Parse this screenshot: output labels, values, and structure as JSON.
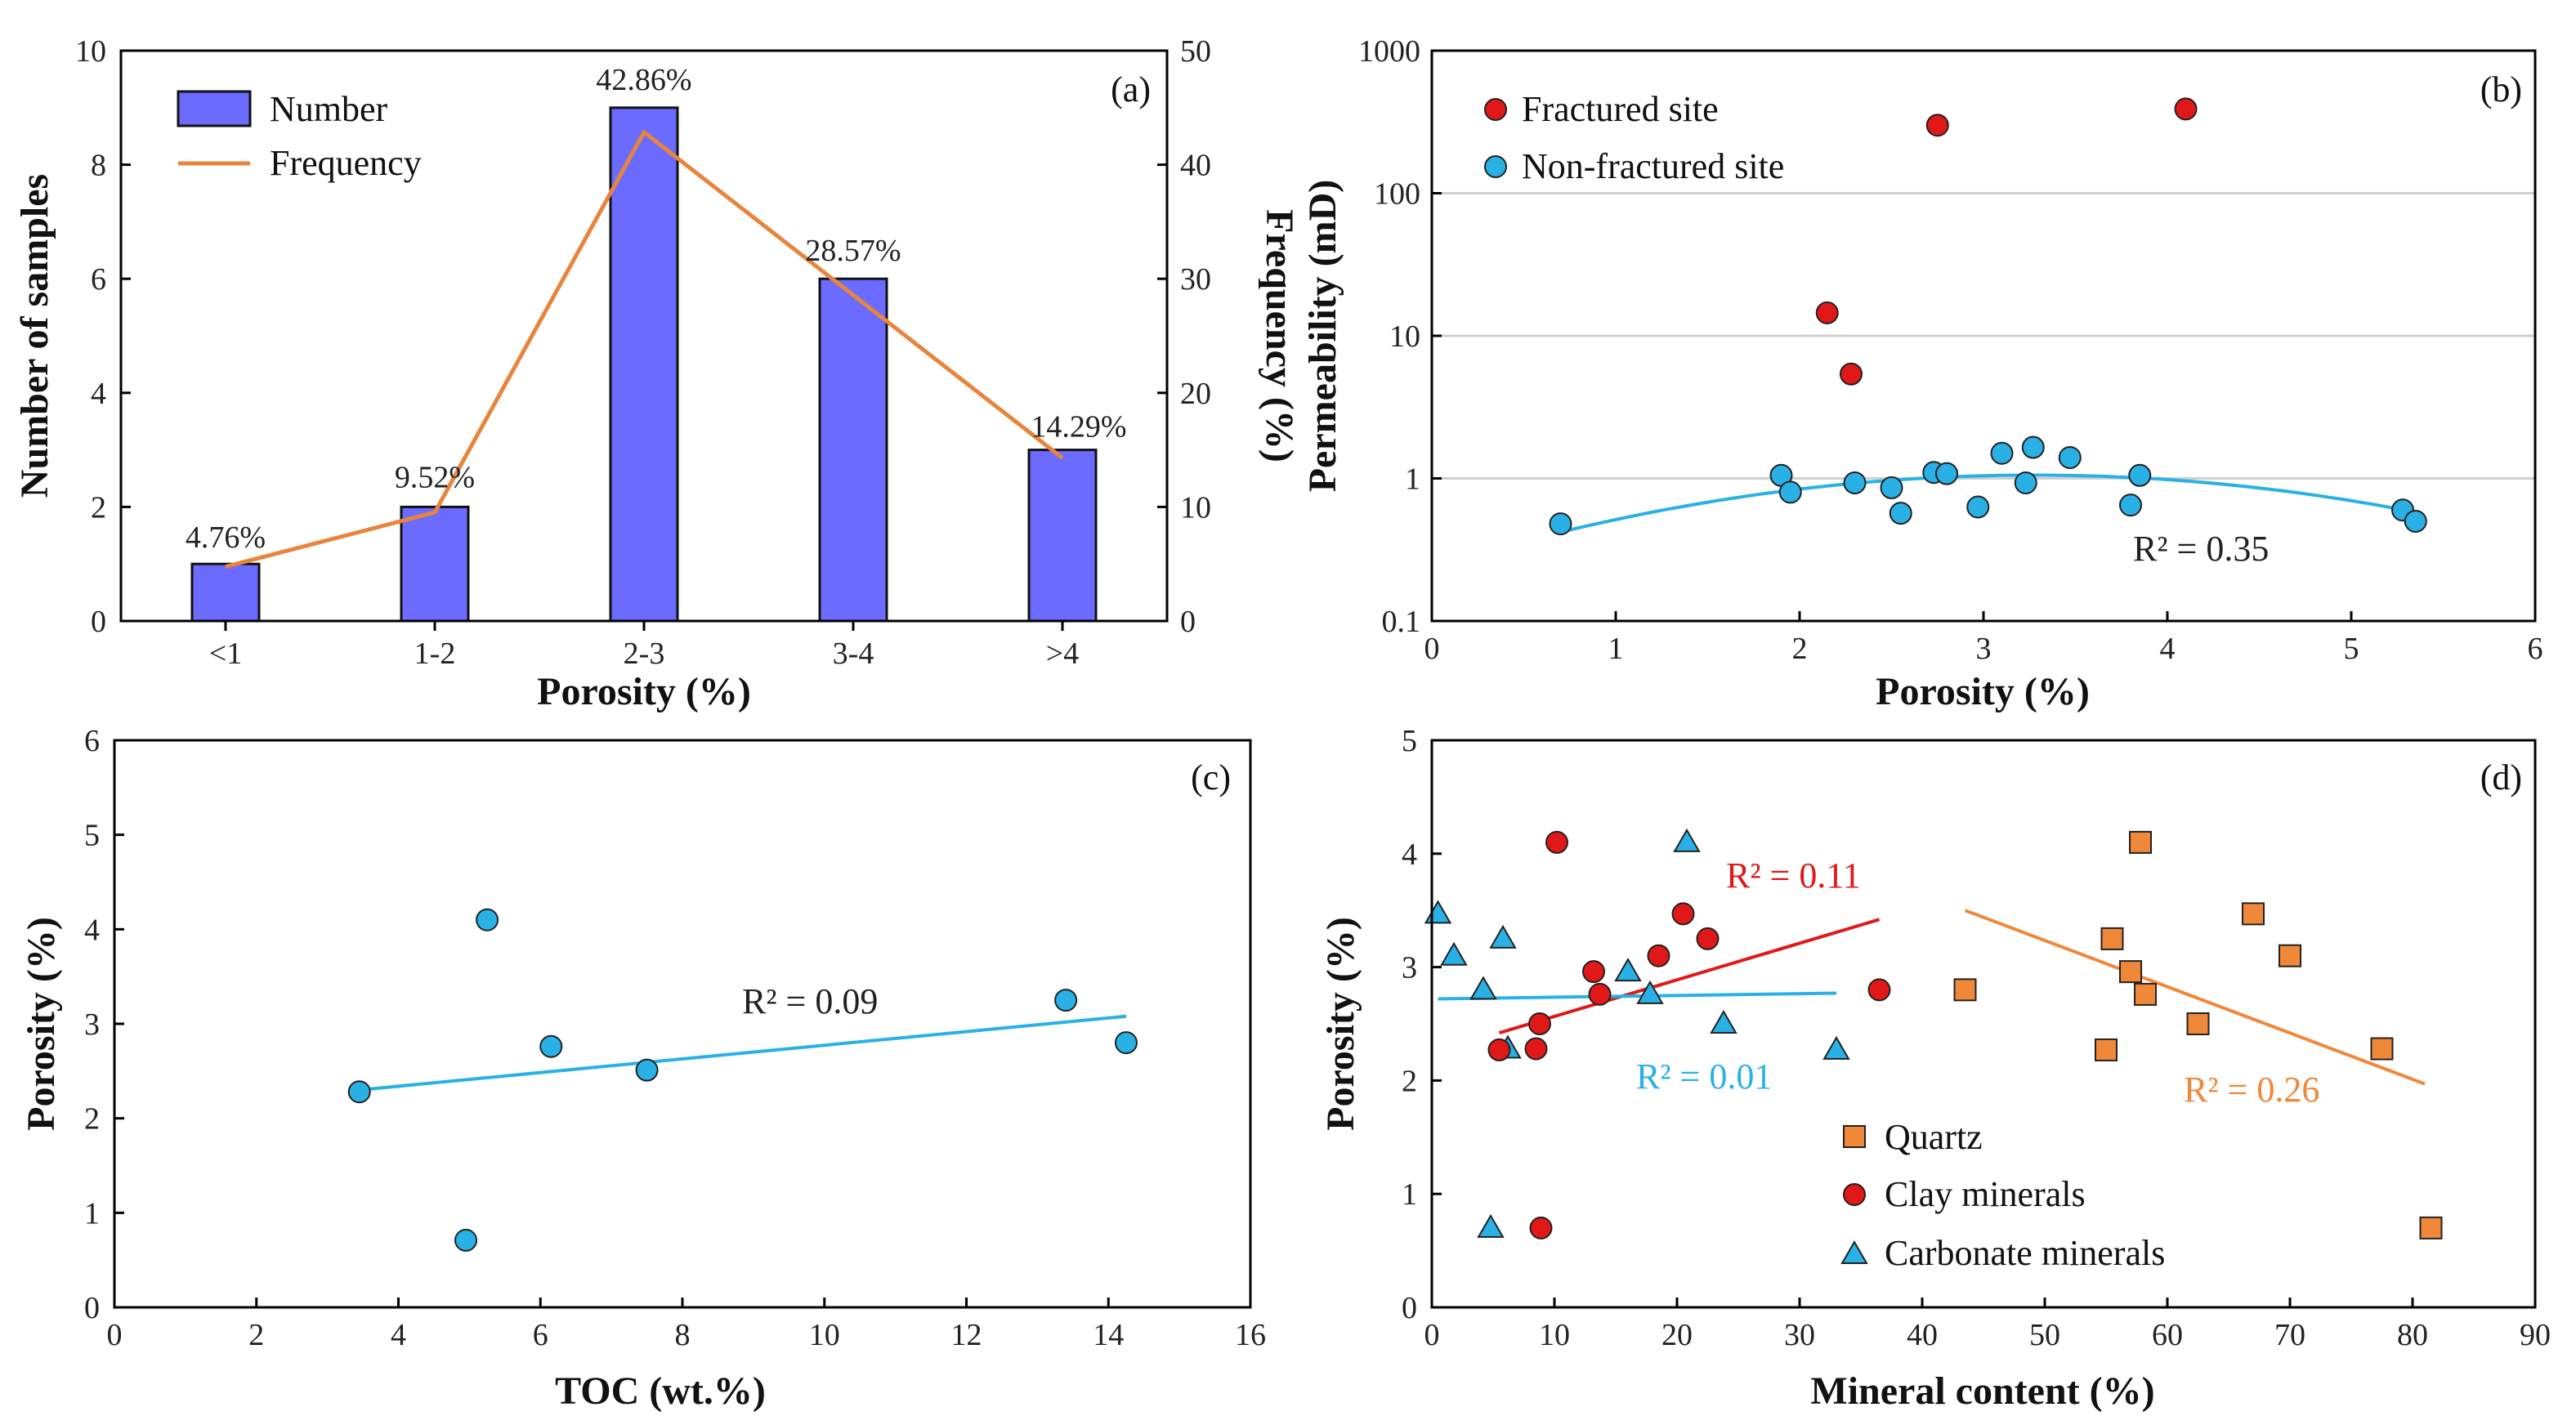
{
  "colors": {
    "bar": "#6b6bff",
    "freq_line": "#e8853d",
    "red": "#e01818",
    "blue": "#29b1e6",
    "orange": "#f0883a",
    "grid": "#cfcfcf"
  },
  "chart_data": [
    {
      "id": "a",
      "type": "bar",
      "panel_label": "(a)",
      "categories": [
        "<1",
        "1-2",
        "2-3",
        "3-4",
        ">4"
      ],
      "xlabel": "Porosity  (%)",
      "ylabel": "Number of samples",
      "y2label": "Frequency  (%)",
      "ylim": [
        0,
        10
      ],
      "y2lim": [
        0,
        50
      ],
      "yticks": [
        "0",
        "2",
        "4",
        "6",
        "8",
        "10"
      ],
      "y2ticks": [
        "0",
        "10",
        "20",
        "30",
        "40",
        "50"
      ],
      "series": [
        {
          "name": "Number",
          "values": [
            1,
            2,
            9,
            6,
            3
          ]
        },
        {
          "name": "Frequency",
          "values": [
            4.76,
            9.52,
            42.86,
            28.57,
            14.29
          ]
        }
      ],
      "bar_labels": [
        "4.76%",
        "9.52%",
        "42.86%",
        "28.57%",
        "14.29%"
      ],
      "legend": [
        "Number",
        "Frequency"
      ]
    },
    {
      "id": "b",
      "type": "scatter",
      "panel_label": "(b)",
      "xlabel": "Porosity  (%)",
      "ylabel": "Permeability  (mD)",
      "xlim": [
        0,
        6
      ],
      "ylim": [
        0.1,
        1000
      ],
      "yscale": "log",
      "xticks": [
        "0",
        "1",
        "2",
        "3",
        "4",
        "5",
        "6"
      ],
      "yticks": [
        "0.1",
        "1",
        "10",
        "100",
        "1000"
      ],
      "series": [
        {
          "name": "Fractured site",
          "x": [
            2.15,
            2.28,
            2.75,
            4.1
          ],
          "y": [
            14.5,
            5.4,
            300,
            390
          ]
        },
        {
          "name": "Non-fractured site",
          "x": [
            0.7,
            1.9,
            1.95,
            2.3,
            2.5,
            2.55,
            2.73,
            2.8,
            2.97,
            3.1,
            3.23,
            3.27,
            3.47,
            3.8,
            3.85,
            5.28,
            5.35
          ],
          "y": [
            0.48,
            1.05,
            0.8,
            0.93,
            0.86,
            0.57,
            1.1,
            1.08,
            0.63,
            1.5,
            0.93,
            1.65,
            1.4,
            0.65,
            1.05,
            0.6,
            0.5
          ]
        }
      ],
      "trend": {
        "type": "quadratic",
        "x": [
          0.7,
          3.1,
          5.35
        ],
        "y": [
          0.42,
          1.05,
          0.58
        ],
        "label": "R² = 0.35"
      },
      "legend": [
        "Fractured site",
        "Non-fractured site"
      ]
    },
    {
      "id": "c",
      "type": "scatter",
      "panel_label": "(c)",
      "xlabel": "TOC (wt.%)",
      "ylabel": "Porosity  (%)",
      "xlim": [
        0,
        16
      ],
      "ylim": [
        0,
        6
      ],
      "xticks": [
        "0",
        "2",
        "4",
        "6",
        "8",
        "10",
        "12",
        "14",
        "16"
      ],
      "yticks": [
        "0",
        "1",
        "2",
        "3",
        "4",
        "5",
        "6"
      ],
      "series": [
        {
          "name": "samples",
          "x": [
            3.45,
            4.95,
            5.25,
            6.15,
            7.5,
            13.4,
            14.25
          ],
          "y": [
            2.28,
            0.71,
            4.1,
            2.76,
            2.51,
            3.25,
            2.8
          ]
        }
      ],
      "trend": {
        "type": "linear",
        "x": [
          3.45,
          14.25
        ],
        "y": [
          2.3,
          3.08
        ],
        "label": "R² = 0.09"
      }
    },
    {
      "id": "d",
      "type": "scatter",
      "panel_label": "(d)",
      "xlabel": "Mineral content  (%)",
      "ylabel": "Porosity  (%)",
      "xlim": [
        0,
        90
      ],
      "ylim": [
        0,
        5
      ],
      "xticks": [
        "0",
        "10",
        "20",
        "30",
        "40",
        "50",
        "60",
        "70",
        "80",
        "90"
      ],
      "yticks": [
        "0",
        "1",
        "2",
        "3",
        "4",
        "5"
      ],
      "series": [
        {
          "name": "Quartz",
          "x": [
            43.5,
            55,
            55.5,
            57,
            57.8,
            58.2,
            62.5,
            67,
            70,
            77.5,
            81.5
          ],
          "y": [
            2.8,
            2.27,
            3.25,
            2.96,
            4.1,
            2.76,
            2.5,
            3.47,
            3.1,
            2.28,
            0.7
          ]
        },
        {
          "name": "Clay minerals",
          "x": [
            5.5,
            8.5,
            8.8,
            8.9,
            10.2,
            13.2,
            13.7,
            18.5,
            20.5,
            22.5,
            36.5
          ],
          "y": [
            2.27,
            2.28,
            2.5,
            0.7,
            4.1,
            2.96,
            2.76,
            3.1,
            3.47,
            3.25,
            2.8
          ]
        },
        {
          "name": "Carbonate minerals",
          "x": [
            0.5,
            1.8,
            4.2,
            4.8,
            5.8,
            6.2,
            16,
            17.8,
            20.8,
            23.8,
            33
          ],
          "y": [
            3.47,
            3.1,
            2.8,
            0.7,
            3.25,
            2.28,
            2.96,
            2.76,
            4.1,
            2.5,
            2.27
          ]
        }
      ],
      "trends": [
        {
          "series": "Quartz",
          "x": [
            43.5,
            81
          ],
          "y": [
            3.5,
            1.97
          ],
          "label": "R² = 0.26"
        },
        {
          "series": "Clay minerals",
          "x": [
            5.5,
            36.5
          ],
          "y": [
            2.42,
            3.42
          ],
          "label": "R² = 0.11"
        },
        {
          "series": "Carbonate minerals",
          "x": [
            0.5,
            33
          ],
          "y": [
            2.72,
            2.77
          ],
          "label": "R² = 0.01"
        }
      ],
      "legend": [
        "Quartz",
        "Clay minerals",
        "Carbonate minerals"
      ]
    }
  ]
}
